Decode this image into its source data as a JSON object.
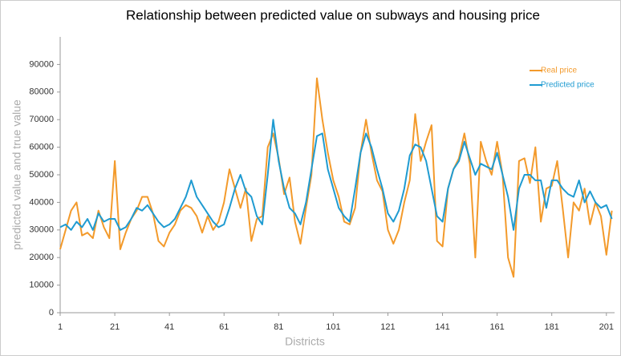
{
  "chart_data": {
    "type": "line",
    "title": "Relationship between predicted value on subways and housing price",
    "x_label": "Districts",
    "y_label": "predicted value and true value",
    "x": [
      1,
      3,
      5,
      7,
      9,
      11,
      13,
      15,
      17,
      19,
      21,
      23,
      25,
      27,
      29,
      31,
      33,
      35,
      37,
      39,
      41,
      43,
      45,
      47,
      49,
      51,
      53,
      55,
      57,
      59,
      61,
      63,
      65,
      67,
      69,
      71,
      73,
      75,
      77,
      79,
      81,
      83,
      85,
      87,
      89,
      91,
      93,
      95,
      97,
      99,
      101,
      103,
      105,
      107,
      109,
      111,
      113,
      115,
      117,
      119,
      121,
      123,
      125,
      127,
      129,
      131,
      133,
      135,
      137,
      139,
      141,
      143,
      145,
      147,
      149,
      151,
      153,
      155,
      157,
      159,
      161,
      163,
      165,
      167,
      169,
      171,
      173,
      175,
      177,
      179,
      181,
      183,
      185,
      187,
      189,
      191,
      193,
      195,
      197,
      199,
      201,
      203
    ],
    "series": [
      {
        "name": "Real price",
        "color": "#f39a2b",
        "values": [
          23000,
          30000,
          37000,
          40000,
          28000,
          29000,
          27000,
          37000,
          31000,
          27000,
          55000,
          23000,
          29000,
          34000,
          37000,
          42000,
          42000,
          36000,
          26000,
          24000,
          29000,
          32000,
          37000,
          39000,
          38000,
          35000,
          29000,
          35000,
          30000,
          33000,
          40000,
          52000,
          45000,
          38000,
          45000,
          26000,
          34000,
          35000,
          60000,
          65000,
          56000,
          43000,
          49000,
          33000,
          25000,
          38000,
          50000,
          85000,
          70000,
          58000,
          48000,
          42000,
          33000,
          32000,
          38000,
          58000,
          70000,
          58000,
          48000,
          44000,
          30000,
          25000,
          30000,
          40000,
          48000,
          72000,
          55000,
          62000,
          68000,
          26000,
          24000,
          45000,
          52000,
          56000,
          65000,
          54000,
          20000,
          62000,
          55000,
          50000,
          62000,
          50000,
          20000,
          13000,
          55000,
          56000,
          47000,
          60000,
          33000,
          45000,
          46000,
          55000,
          38000,
          20000,
          40000,
          37000,
          45000,
          32000,
          40000,
          35000,
          21000,
          37000
        ]
      },
      {
        "name": "Predicted price",
        "color": "#1f9bd1",
        "values": [
          31000,
          32000,
          30000,
          33000,
          31000,
          34000,
          30000,
          36000,
          33000,
          34000,
          34000,
          30000,
          31000,
          34000,
          38000,
          37000,
          39000,
          36000,
          33000,
          31000,
          32000,
          34000,
          38000,
          42000,
          48000,
          42000,
          39000,
          36000,
          33000,
          31000,
          32000,
          38000,
          45000,
          50000,
          44000,
          42000,
          35000,
          32000,
          50000,
          70000,
          55000,
          45000,
          38000,
          36000,
          32000,
          40000,
          52000,
          64000,
          65000,
          52000,
          45000,
          38000,
          35000,
          33000,
          45000,
          58000,
          65000,
          60000,
          52000,
          45000,
          36000,
          33000,
          37000,
          45000,
          57000,
          61000,
          60000,
          55000,
          45000,
          35000,
          33000,
          45000,
          52000,
          55000,
          62000,
          56000,
          50000,
          54000,
          53000,
          52000,
          58000,
          50000,
          42000,
          30000,
          45000,
          50000,
          50000,
          48000,
          48000,
          38000,
          48000,
          48000,
          45000,
          43000,
          42000,
          48000,
          40000,
          44000,
          40000,
          38000,
          39000,
          34000
        ]
      }
    ],
    "xlim": [
      1,
      204
    ],
    "xticks": [
      1,
      21,
      41,
      61,
      81,
      101,
      121,
      141,
      161,
      181,
      201
    ],
    "ylim": [
      0,
      100000
    ],
    "yticks": [
      0,
      10000,
      20000,
      30000,
      40000,
      50000,
      60000,
      70000,
      80000,
      90000
    ],
    "legend": "top-right"
  }
}
